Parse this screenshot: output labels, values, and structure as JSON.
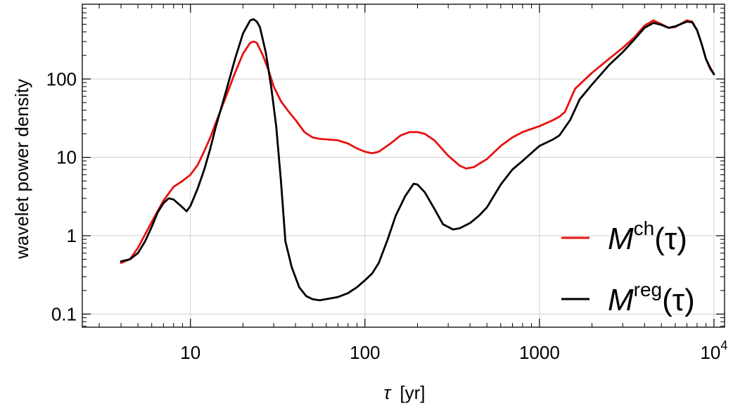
{
  "chart_data": {
    "type": "line",
    "xlabel_symbol": "τ",
    "xlabel_unit": "[yr]",
    "ylabel": "wavelet power density",
    "x_scale": "log",
    "y_scale": "log",
    "xlim": [
      2.4,
      11500
    ],
    "ylim": [
      0.068,
      900
    ],
    "grid": true,
    "legend_position": "bottom-right",
    "x_ticks": [
      {
        "value": 10,
        "label": "10"
      },
      {
        "value": 100,
        "label": "100"
      },
      {
        "value": 1000,
        "label": "1000"
      },
      {
        "value": 10000,
        "label_base": "10",
        "label_exp": "4"
      }
    ],
    "y_ticks": [
      {
        "value": 0.1,
        "label": "0.1"
      },
      {
        "value": 1,
        "label": "1"
      },
      {
        "value": 10,
        "label": "10"
      },
      {
        "value": 100,
        "label": "100"
      }
    ],
    "series": [
      {
        "legend_base": "M",
        "legend_sup": "ch",
        "legend_arg": "(τ)",
        "color": "#e8110f",
        "points": [
          [
            4,
            0.45
          ],
          [
            4.5,
            0.5
          ],
          [
            5,
            0.7
          ],
          [
            6,
            1.5
          ],
          [
            7,
            2.8
          ],
          [
            8,
            4.2
          ],
          [
            9,
            5.0
          ],
          [
            10,
            6.0
          ],
          [
            11,
            8.0
          ],
          [
            12,
            12
          ],
          [
            13,
            18
          ],
          [
            14,
            28
          ],
          [
            16,
            60
          ],
          [
            18,
            120
          ],
          [
            20,
            210
          ],
          [
            22,
            290
          ],
          [
            23,
            300
          ],
          [
            24,
            290
          ],
          [
            26,
            200
          ],
          [
            28,
            130
          ],
          [
            30,
            80
          ],
          [
            33,
            52
          ],
          [
            36,
            40
          ],
          [
            40,
            30
          ],
          [
            45,
            21
          ],
          [
            50,
            18
          ],
          [
            55,
            17.2
          ],
          [
            60,
            17.0
          ],
          [
            70,
            16.5
          ],
          [
            80,
            15
          ],
          [
            90,
            13
          ],
          [
            100,
            11.8
          ],
          [
            110,
            11.3
          ],
          [
            120,
            11.8
          ],
          [
            140,
            15
          ],
          [
            160,
            19
          ],
          [
            180,
            21
          ],
          [
            200,
            21
          ],
          [
            220,
            20
          ],
          [
            250,
            16.5
          ],
          [
            300,
            10.5
          ],
          [
            350,
            7.8
          ],
          [
            380,
            7.2
          ],
          [
            420,
            7.5
          ],
          [
            500,
            9.5
          ],
          [
            600,
            14
          ],
          [
            700,
            18
          ],
          [
            800,
            21
          ],
          [
            1000,
            25
          ],
          [
            1200,
            30
          ],
          [
            1300,
            33
          ],
          [
            1400,
            38
          ],
          [
            1600,
            75
          ],
          [
            2000,
            120
          ],
          [
            2500,
            180
          ],
          [
            3000,
            250
          ],
          [
            3500,
            340
          ],
          [
            4000,
            480
          ],
          [
            4500,
            560
          ],
          [
            5000,
            500
          ],
          [
            5500,
            450
          ],
          [
            6000,
            460
          ],
          [
            7000,
            560
          ],
          [
            7500,
            540
          ],
          [
            8000,
            420
          ],
          [
            8500,
            280
          ],
          [
            9000,
            180
          ],
          [
            9500,
            135
          ],
          [
            10000,
            115
          ]
        ]
      },
      {
        "legend_base": "M",
        "legend_sup": "reg",
        "legend_arg": "(τ)",
        "color": "#000000",
        "points": [
          [
            4,
            0.47
          ],
          [
            4.5,
            0.5
          ],
          [
            5,
            0.6
          ],
          [
            5.5,
            0.85
          ],
          [
            6,
            1.3
          ],
          [
            6.5,
            2.0
          ],
          [
            7,
            2.6
          ],
          [
            7.5,
            3.0
          ],
          [
            8,
            2.9
          ],
          [
            9,
            2.3
          ],
          [
            9.5,
            2.05
          ],
          [
            10,
            2.4
          ],
          [
            11,
            4.0
          ],
          [
            12,
            7
          ],
          [
            13,
            13
          ],
          [
            14,
            25
          ],
          [
            16,
            70
          ],
          [
            18,
            180
          ],
          [
            20,
            380
          ],
          [
            22,
            560
          ],
          [
            23,
            580
          ],
          [
            24,
            540
          ],
          [
            25,
            460
          ],
          [
            27,
            220
          ],
          [
            29,
            80
          ],
          [
            31,
            25
          ],
          [
            33,
            5
          ],
          [
            35,
            0.85
          ],
          [
            38,
            0.4
          ],
          [
            42,
            0.22
          ],
          [
            46,
            0.17
          ],
          [
            50,
            0.155
          ],
          [
            55,
            0.15
          ],
          [
            60,
            0.155
          ],
          [
            70,
            0.165
          ],
          [
            80,
            0.185
          ],
          [
            90,
            0.22
          ],
          [
            100,
            0.27
          ],
          [
            110,
            0.33
          ],
          [
            120,
            0.45
          ],
          [
            135,
            0.9
          ],
          [
            150,
            1.8
          ],
          [
            170,
            3.2
          ],
          [
            190,
            4.6
          ],
          [
            200,
            4.5
          ],
          [
            220,
            3.6
          ],
          [
            250,
            2.2
          ],
          [
            280,
            1.4
          ],
          [
            320,
            1.2
          ],
          [
            350,
            1.25
          ],
          [
            400,
            1.45
          ],
          [
            450,
            1.8
          ],
          [
            500,
            2.3
          ],
          [
            600,
            4.5
          ],
          [
            700,
            7
          ],
          [
            800,
            9
          ],
          [
            1000,
            14
          ],
          [
            1200,
            17
          ],
          [
            1300,
            19
          ],
          [
            1500,
            30
          ],
          [
            1700,
            55
          ],
          [
            2000,
            85
          ],
          [
            2500,
            150
          ],
          [
            3000,
            220
          ],
          [
            3500,
            320
          ],
          [
            4000,
            450
          ],
          [
            4500,
            520
          ],
          [
            5000,
            490
          ],
          [
            5500,
            450
          ],
          [
            6000,
            470
          ],
          [
            7000,
            540
          ],
          [
            7500,
            530
          ],
          [
            8000,
            420
          ],
          [
            8500,
            280
          ],
          [
            9000,
            180
          ],
          [
            9500,
            140
          ],
          [
            10000,
            115
          ]
        ]
      }
    ]
  }
}
